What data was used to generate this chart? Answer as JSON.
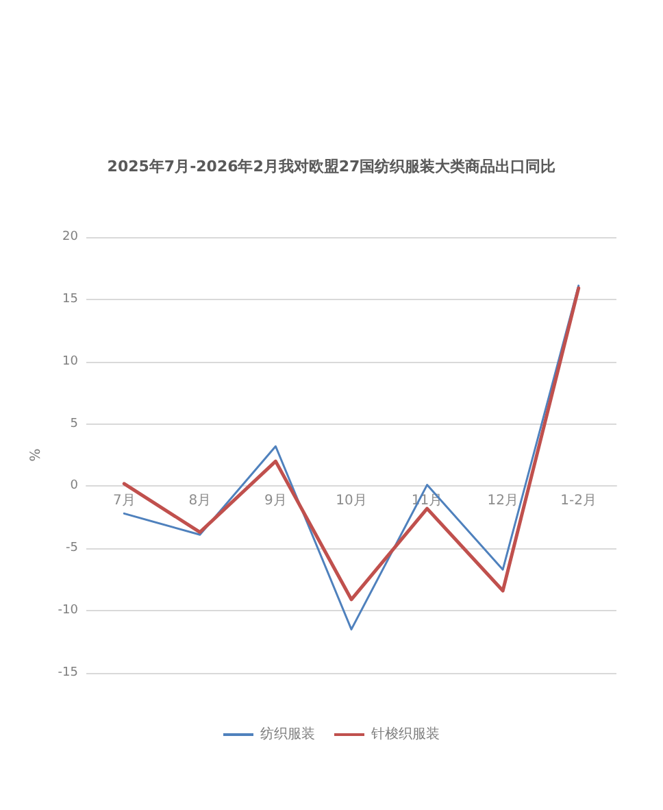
{
  "chart_data": {
    "type": "line",
    "title": "2025年7月-2026年2月我对欧盟27国纺织服装大类商品出口同比",
    "ylabel": "%",
    "categories": [
      "7月",
      "8月",
      "9月",
      "10月",
      "11月",
      "12月",
      "1-2月"
    ],
    "series": [
      {
        "name": "纺织服装",
        "color": "#4f81bd",
        "values": [
          -2.2,
          -3.9,
          3.2,
          -11.5,
          0.1,
          -6.7,
          16.1
        ]
      },
      {
        "name": "针梭织服装",
        "color": "#c0504d",
        "values": [
          0.2,
          -3.7,
          2.0,
          -9.1,
          -1.8,
          -8.4,
          15.9
        ]
      }
    ],
    "ylim": [
      -15,
      20
    ],
    "yticks": [
      -15,
      -10,
      -5,
      0,
      5,
      10,
      15,
      20
    ],
    "grid": "y",
    "legend": "bottom",
    "marker": "none",
    "line_style": "solid"
  }
}
